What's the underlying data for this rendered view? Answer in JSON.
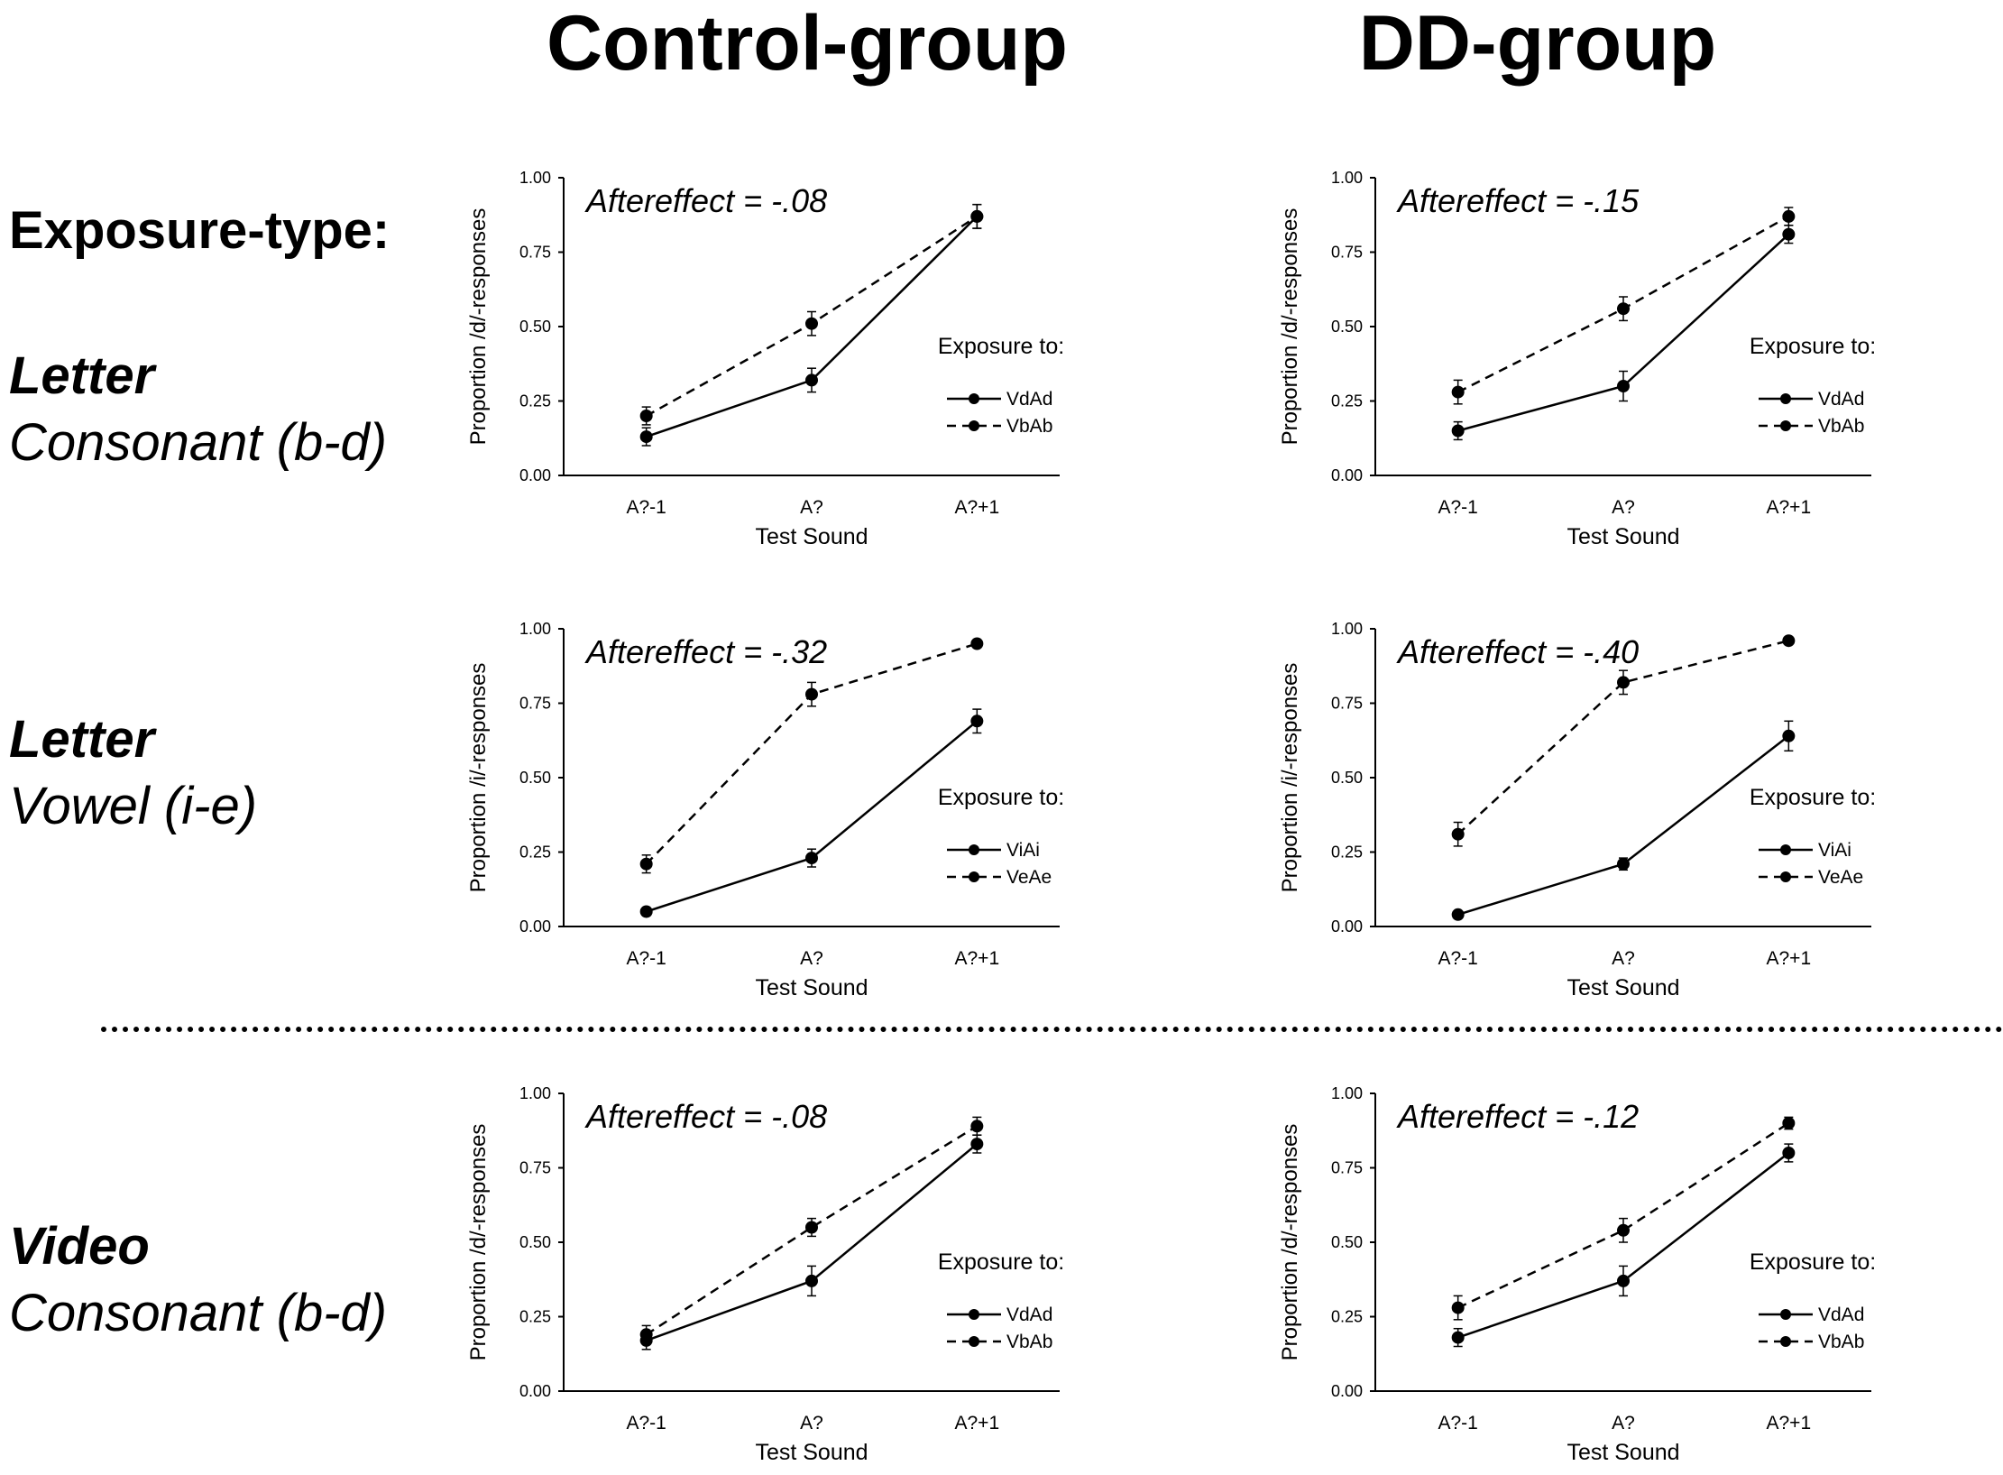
{
  "columns": {
    "control": "Control-group",
    "dd": "DD-group"
  },
  "heading": "Exposure-type:",
  "rows": [
    {
      "bold": "Letter",
      "italic": "Consonant (b-d)"
    },
    {
      "bold": "Letter",
      "italic": "Vowel (i-e)"
    },
    {
      "bold": "Video",
      "italic": "Consonant (b-d)"
    }
  ],
  "chart_data": [
    {
      "type": "line",
      "group": "Control-group",
      "panel": "Letter Consonant (b-d)",
      "categories": [
        "A?-1",
        "A?",
        "A?+1"
      ],
      "xlabel": "Test Sound",
      "ylabel": "Proportion /d/-responses",
      "ylim": [
        0,
        1
      ],
      "yticks": [
        "0.00",
        "0.25",
        "0.50",
        "0.75",
        "1.00"
      ],
      "annotation": "Aftereffect = -.08",
      "legend_title": "Exposure to:",
      "legend_position": "right",
      "series": [
        {
          "name": "VdAd",
          "style": "solid",
          "values": [
            0.13,
            0.32,
            0.87
          ],
          "errors": [
            0.03,
            0.04,
            0.04
          ]
        },
        {
          "name": "VbAb",
          "style": "dashed",
          "values": [
            0.2,
            0.51,
            0.87
          ],
          "errors": [
            0.03,
            0.04,
            0.04
          ]
        }
      ]
    },
    {
      "type": "line",
      "group": "DD-group",
      "panel": "Letter Consonant (b-d)",
      "categories": [
        "A?-1",
        "A?",
        "A?+1"
      ],
      "xlabel": "Test Sound",
      "ylabel": "Proportion /d/-responses",
      "ylim": [
        0,
        1
      ],
      "yticks": [
        "0.00",
        "0.25",
        "0.50",
        "0.75",
        "1.00"
      ],
      "annotation": "Aftereffect = -.15",
      "legend_title": "Exposure to:",
      "legend_position": "right",
      "series": [
        {
          "name": "VdAd",
          "style": "solid",
          "values": [
            0.15,
            0.3,
            0.81
          ],
          "errors": [
            0.03,
            0.05,
            0.03
          ]
        },
        {
          "name": "VbAb",
          "style": "dashed",
          "values": [
            0.28,
            0.56,
            0.87
          ],
          "errors": [
            0.04,
            0.04,
            0.03
          ]
        }
      ]
    },
    {
      "type": "line",
      "group": "Control-group",
      "panel": "Letter Vowel (i-e)",
      "categories": [
        "A?-1",
        "A?",
        "A?+1"
      ],
      "xlabel": "Test Sound",
      "ylabel": "Proportion /i/-responses",
      "ylim": [
        0,
        1
      ],
      "yticks": [
        "0.00",
        "0.25",
        "0.50",
        "0.75",
        "1.00"
      ],
      "annotation": "Aftereffect = -.32",
      "legend_title": "Exposure to:",
      "legend_position": "right",
      "series": [
        {
          "name": "ViAi",
          "style": "solid",
          "values": [
            0.05,
            0.23,
            0.69
          ],
          "errors": [
            0.01,
            0.03,
            0.04
          ]
        },
        {
          "name": "VeAe",
          "style": "dashed",
          "values": [
            0.21,
            0.78,
            0.95
          ],
          "errors": [
            0.03,
            0.04,
            0.0
          ]
        }
      ]
    },
    {
      "type": "line",
      "group": "DD-group",
      "panel": "Letter Vowel (i-e)",
      "categories": [
        "A?-1",
        "A?",
        "A?+1"
      ],
      "xlabel": "Test Sound",
      "ylabel": "Proportion /i/-responses",
      "ylim": [
        0,
        1
      ],
      "yticks": [
        "0.00",
        "0.25",
        "0.50",
        "0.75",
        "1.00"
      ],
      "annotation": "Aftereffect = -.40",
      "legend_title": "Exposure to:",
      "legend_position": "right",
      "series": [
        {
          "name": "ViAi",
          "style": "solid",
          "values": [
            0.04,
            0.21,
            0.64
          ],
          "errors": [
            0.0,
            0.02,
            0.05
          ]
        },
        {
          "name": "VeAe",
          "style": "dashed",
          "values": [
            0.31,
            0.82,
            0.96
          ],
          "errors": [
            0.04,
            0.04,
            0.0
          ]
        }
      ]
    },
    {
      "type": "line",
      "group": "Control-group",
      "panel": "Video Consonant (b-d)",
      "categories": [
        "A?-1",
        "A?",
        "A?+1"
      ],
      "xlabel": "Test Sound",
      "ylabel": "Proportion /d/-responses",
      "ylim": [
        0,
        1
      ],
      "yticks": [
        "0.00",
        "0.25",
        "0.50",
        "0.75",
        "1.00"
      ],
      "annotation": "Aftereffect = -.08",
      "legend_title": "Exposure to:",
      "legend_position": "right",
      "series": [
        {
          "name": "VdAd",
          "style": "solid",
          "values": [
            0.17,
            0.37,
            0.83
          ],
          "errors": [
            0.03,
            0.05,
            0.03
          ]
        },
        {
          "name": "VbAb",
          "style": "dashed",
          "values": [
            0.19,
            0.55,
            0.89
          ],
          "errors": [
            0.03,
            0.03,
            0.03
          ]
        }
      ]
    },
    {
      "type": "line",
      "group": "DD-group",
      "panel": "Video Consonant (b-d)",
      "categories": [
        "A?-1",
        "A?",
        "A?+1"
      ],
      "xlabel": "Test Sound",
      "ylabel": "Proportion /d/-responses",
      "ylim": [
        0,
        1
      ],
      "yticks": [
        "0.00",
        "0.25",
        "0.50",
        "0.75",
        "1.00"
      ],
      "annotation": "Aftereffect = -.12",
      "legend_title": "Exposure to:",
      "legend_position": "right",
      "series": [
        {
          "name": "VdAd",
          "style": "solid",
          "values": [
            0.18,
            0.37,
            0.8
          ],
          "errors": [
            0.03,
            0.05,
            0.03
          ]
        },
        {
          "name": "VbAb",
          "style": "dashed",
          "values": [
            0.28,
            0.54,
            0.9
          ],
          "errors": [
            0.04,
            0.04,
            0.02
          ]
        }
      ]
    }
  ]
}
